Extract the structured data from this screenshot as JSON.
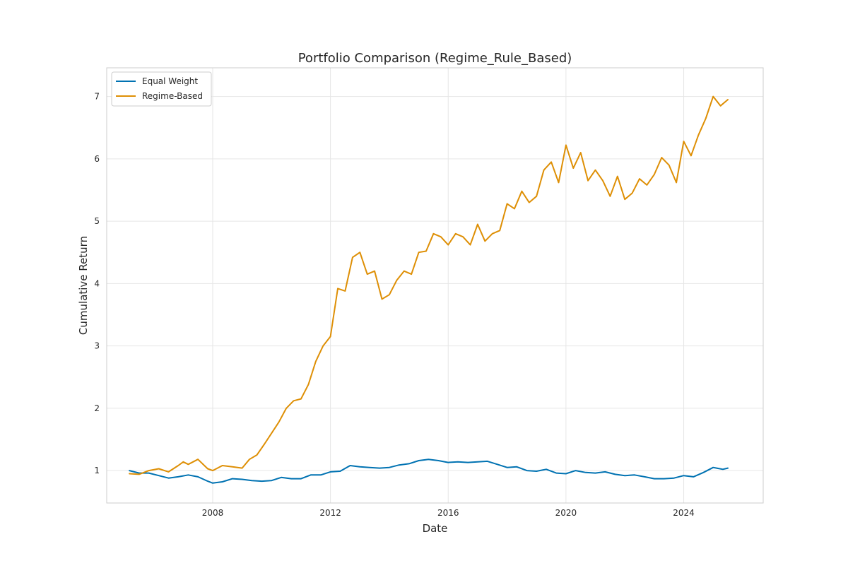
{
  "chart_data": {
    "type": "line",
    "title": "Portfolio Comparison (Regime_Rule_Based)",
    "xlabel": "Date",
    "ylabel": "Cumulative Return",
    "xlim": [
      2004.4,
      2026.7
    ],
    "ylim": [
      0.48,
      7.46
    ],
    "x_ticks": [
      2008,
      2012,
      2016,
      2020,
      2024
    ],
    "x_tick_labels": [
      "2008",
      "2012",
      "2016",
      "2020",
      "2024"
    ],
    "y_ticks": [
      1,
      2,
      3,
      4,
      5,
      6,
      7
    ],
    "y_tick_labels": [
      "1",
      "2",
      "3",
      "4",
      "5",
      "6",
      "7"
    ],
    "grid": true,
    "legend_position": "top-left",
    "series": [
      {
        "name": "Equal Weight",
        "color": "#0072b2",
        "x": [
          2005.17,
          2005.5,
          2005.83,
          2006.17,
          2006.5,
          2006.83,
          2007.17,
          2007.5,
          2007.83,
          2008.0,
          2008.33,
          2008.67,
          2009.0,
          2009.33,
          2009.67,
          2010.0,
          2010.33,
          2010.67,
          2011.0,
          2011.33,
          2011.67,
          2012.0,
          2012.33,
          2012.67,
          2013.0,
          2013.33,
          2013.67,
          2014.0,
          2014.33,
          2014.67,
          2015.0,
          2015.33,
          2015.67,
          2016.0,
          2016.33,
          2016.67,
          2017.0,
          2017.33,
          2017.67,
          2018.0,
          2018.33,
          2018.67,
          2019.0,
          2019.33,
          2019.67,
          2020.0,
          2020.33,
          2020.67,
          2021.0,
          2021.33,
          2021.67,
          2022.0,
          2022.33,
          2022.67,
          2023.0,
          2023.33,
          2023.67,
          2024.0,
          2024.33,
          2024.67,
          2025.0,
          2025.33,
          2025.5
        ],
        "y": [
          1.0,
          0.96,
          0.96,
          0.92,
          0.88,
          0.9,
          0.93,
          0.9,
          0.83,
          0.8,
          0.82,
          0.87,
          0.86,
          0.84,
          0.83,
          0.84,
          0.89,
          0.87,
          0.87,
          0.93,
          0.93,
          0.98,
          0.99,
          1.08,
          1.06,
          1.05,
          1.04,
          1.05,
          1.09,
          1.11,
          1.16,
          1.18,
          1.16,
          1.13,
          1.14,
          1.13,
          1.14,
          1.15,
          1.1,
          1.05,
          1.06,
          1.0,
          0.99,
          1.02,
          0.96,
          0.95,
          1.0,
          0.97,
          0.96,
          0.98,
          0.94,
          0.92,
          0.93,
          0.9,
          0.87,
          0.87,
          0.88,
          0.92,
          0.9,
          0.97,
          1.05,
          1.02,
          1.04
        ]
      },
      {
        "name": "Regime-Based",
        "color": "#de8f05",
        "x": [
          2005.17,
          2005.5,
          2005.83,
          2006.17,
          2006.5,
          2006.83,
          2007.0,
          2007.17,
          2007.5,
          2007.83,
          2008.0,
          2008.33,
          2008.67,
          2009.0,
          2009.25,
          2009.5,
          2009.75,
          2010.0,
          2010.25,
          2010.5,
          2010.75,
          2011.0,
          2011.25,
          2011.5,
          2011.75,
          2012.0,
          2012.25,
          2012.5,
          2012.75,
          2013.0,
          2013.25,
          2013.5,
          2013.75,
          2014.0,
          2014.25,
          2014.5,
          2014.75,
          2015.0,
          2015.25,
          2015.5,
          2015.75,
          2016.0,
          2016.25,
          2016.5,
          2016.75,
          2017.0,
          2017.25,
          2017.5,
          2017.75,
          2018.0,
          2018.25,
          2018.5,
          2018.75,
          2019.0,
          2019.25,
          2019.5,
          2019.75,
          2020.0,
          2020.25,
          2020.5,
          2020.75,
          2021.0,
          2021.25,
          2021.5,
          2021.75,
          2022.0,
          2022.25,
          2022.5,
          2022.75,
          2023.0,
          2023.25,
          2023.5,
          2023.75,
          2024.0,
          2024.25,
          2024.5,
          2024.75,
          2025.0,
          2025.25,
          2025.5
        ],
        "y": [
          0.95,
          0.94,
          1.0,
          1.03,
          0.98,
          1.08,
          1.14,
          1.1,
          1.18,
          1.03,
          1.0,
          1.08,
          1.06,
          1.04,
          1.18,
          1.25,
          1.42,
          1.6,
          1.78,
          2.0,
          2.12,
          2.15,
          2.38,
          2.75,
          3.0,
          3.15,
          3.92,
          3.88,
          4.42,
          4.5,
          4.15,
          4.2,
          3.75,
          3.82,
          4.05,
          4.2,
          4.15,
          4.5,
          4.52,
          4.8,
          4.75,
          4.62,
          4.8,
          4.75,
          4.62,
          4.95,
          4.68,
          4.8,
          4.85,
          5.28,
          5.2,
          5.48,
          5.3,
          5.4,
          5.82,
          5.95,
          5.62,
          6.22,
          5.85,
          6.1,
          5.65,
          5.82,
          5.65,
          5.4,
          5.72,
          5.35,
          5.45,
          5.68,
          5.58,
          5.75,
          6.02,
          5.9,
          5.62,
          6.28,
          6.05,
          6.38,
          6.65,
          7.0,
          6.85,
          6.95
        ]
      }
    ]
  }
}
